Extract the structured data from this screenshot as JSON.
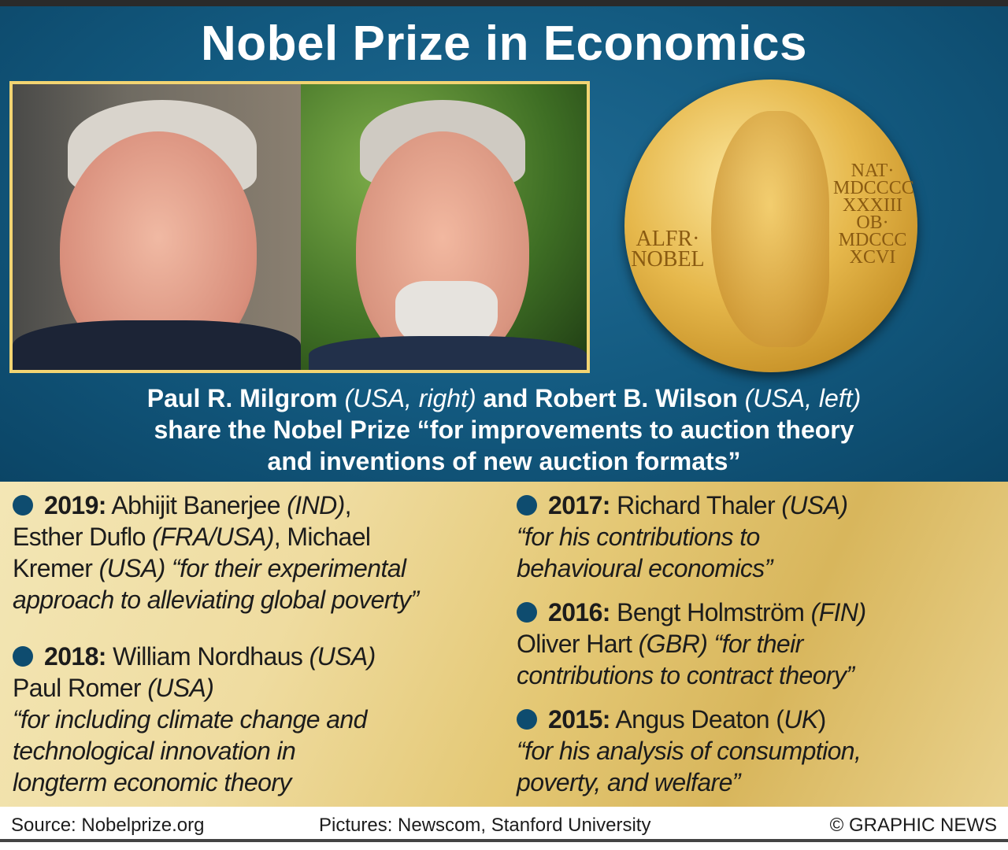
{
  "title": "Nobel Prize in Economics",
  "medal": {
    "inscription_right": "NAT· MDCCCC XXXIII OB· MDCCC XCVI",
    "inscription_left": "ALFR· NOBEL"
  },
  "caption": {
    "line1": [
      {
        "t": "Paul R. Milgrom ",
        "i": false
      },
      {
        "t": "(USA, right)",
        "i": true
      },
      {
        "t": " and Robert B. Wilson ",
        "i": false
      },
      {
        "t": "(USA, left)",
        "i": true
      }
    ],
    "line2": [
      {
        "t": "share the Nobel Prize “for improvements to auction theory",
        "i": false
      }
    ],
    "line3": [
      {
        "t": "and inventions of new auction formats”",
        "i": false
      }
    ]
  },
  "laureates_left": [
    {
      "year": "2019:",
      "lines": [
        [
          {
            "t": " Abhijit Banerjee ",
            "i": false
          },
          {
            "t": "(IND)",
            "i": true
          },
          {
            "t": ",",
            "i": false
          }
        ],
        [
          {
            "t": "Esther Duflo ",
            "i": false
          },
          {
            "t": "(FRA/USA)",
            "i": true
          },
          {
            "t": ", Michael",
            "i": false
          }
        ],
        [
          {
            "t": "Kremer ",
            "i": false
          },
          {
            "t": "(USA) “for their experimental",
            "i": true
          }
        ],
        [
          {
            "t": "approach to alleviating global poverty”",
            "i": true
          }
        ]
      ]
    },
    {
      "year": "2018:",
      "lines": [
        [
          {
            "t": " William Nordhaus ",
            "i": false
          },
          {
            "t": "(USA)",
            "i": true
          }
        ],
        [
          {
            "t": "Paul Romer ",
            "i": false
          },
          {
            "t": "(USA)",
            "i": true
          }
        ],
        [
          {
            "t": "“for including climate change and",
            "i": true
          }
        ],
        [
          {
            "t": "technological innovation in",
            "i": true
          }
        ],
        [
          {
            "t": "longterm economic theory",
            "i": true
          }
        ]
      ]
    }
  ],
  "laureates_right": [
    {
      "year": "2017:",
      "lines": [
        [
          {
            "t": " Richard Thaler ",
            "i": false
          },
          {
            "t": "(USA)",
            "i": true
          }
        ],
        [
          {
            "t": "“for his contributions to",
            "i": true
          }
        ],
        [
          {
            "t": "behavioural economics”",
            "i": true
          }
        ]
      ]
    },
    {
      "year": "2016:",
      "lines": [
        [
          {
            "t": " Bengt Holmström ",
            "i": false
          },
          {
            "t": "(FIN)",
            "i": true
          }
        ],
        [
          {
            "t": "Oliver Hart ",
            "i": false
          },
          {
            "t": "(GBR) “for their",
            "i": true
          }
        ],
        [
          {
            "t": "contributions to contract theory”",
            "i": true
          }
        ]
      ]
    },
    {
      "year": "2015:",
      "lines": [
        [
          {
            "t": " Angus Deaton (",
            "i": false
          },
          {
            "t": "UK",
            "i": true
          },
          {
            "t": ")",
            "i": false
          }
        ],
        [
          {
            "t": "“for his analysis of consumption,",
            "i": true
          }
        ],
        [
          {
            "t": "poverty, and welfare”",
            "i": true
          }
        ]
      ]
    }
  ],
  "footer": {
    "source": "Source: Nobelprize.org",
    "pictures": "Pictures: Newscom, Stanford University",
    "copyright": "© GRAPHIC NEWS"
  },
  "colors": {
    "header_blue": "#135a80",
    "bullet": "#0e4c6f",
    "frame": "#f2d472",
    "gold": "#e6b84c"
  }
}
